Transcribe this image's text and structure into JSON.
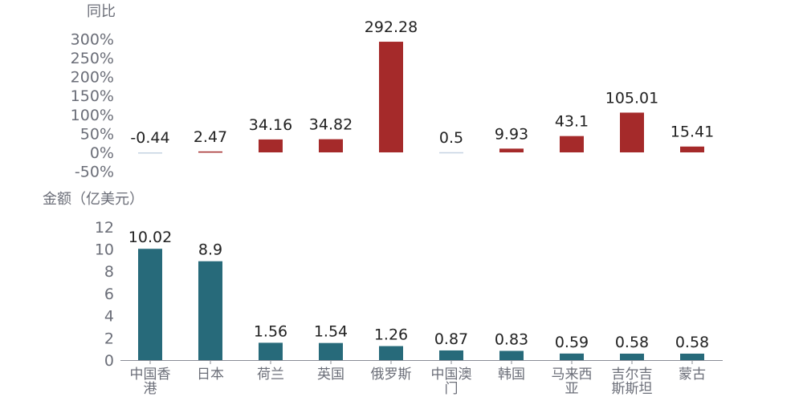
{
  "chart_data": [
    {
      "type": "bar",
      "title": "同比",
      "categories": [
        "中国香港",
        "日本",
        "荷兰",
        "英国",
        "俄罗斯",
        "中国澳门",
        "韩国",
        "马来西亚",
        "吉尔吉斯斯坦",
        "蒙古"
      ],
      "values": [
        -0.44,
        2.47,
        34.16,
        34.82,
        292.28,
        0.5,
        9.93,
        43.1,
        105.01,
        15.41
      ],
      "ylim": [
        -50,
        300
      ],
      "yticks": [
        "300%",
        "250%",
        "200%",
        "150%",
        "100%",
        "50%",
        "0%",
        "-50%"
      ],
      "colors": {
        "positive": "#a52a2a",
        "negative": "#c5d3e2"
      },
      "grid": false
    },
    {
      "type": "bar",
      "title": "金额（亿美元）",
      "categories": [
        "中国香港",
        "日本",
        "荷兰",
        "英国",
        "俄罗斯",
        "中国澳门",
        "韩国",
        "马来西亚",
        "吉尔吉斯斯坦",
        "蒙古"
      ],
      "category_lines": [
        [
          "中国香",
          "港"
        ],
        [
          "日本"
        ],
        [
          "荷兰"
        ],
        [
          "英国"
        ],
        [
          "俄罗斯"
        ],
        [
          "中国澳",
          "门"
        ],
        [
          "韩国"
        ],
        [
          "马来西",
          "亚"
        ],
        [
          "吉尔吉",
          "斯斯坦"
        ],
        [
          "蒙古"
        ]
      ],
      "values": [
        10.02,
        8.9,
        1.56,
        1.54,
        1.26,
        0.87,
        0.83,
        0.59,
        0.58,
        0.58
      ],
      "ylim": [
        0,
        12
      ],
      "yticks": [
        "12",
        "10",
        "8",
        "6",
        "4",
        "2",
        "0"
      ],
      "colors": {
        "bar": "#276a7a"
      },
      "grid": false
    }
  ]
}
